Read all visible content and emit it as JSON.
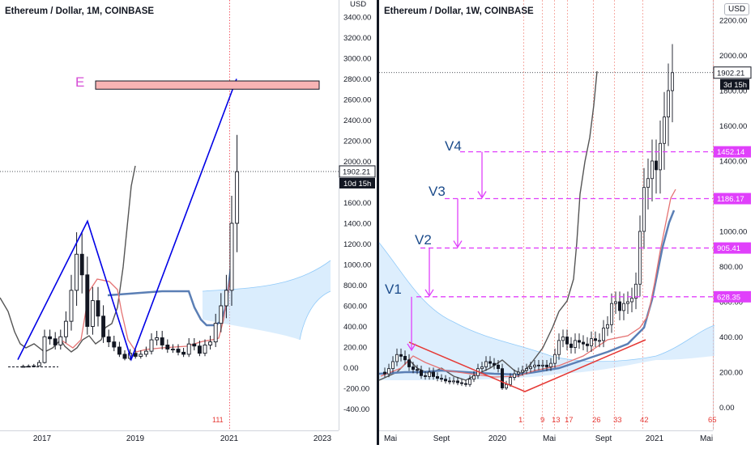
{
  "left_pane": {
    "title": "Ethereum / Dollar, 1M, COINBASE",
    "currency_label": "USD",
    "y_ticks": [
      "3400.00",
      "3200.00",
      "3000.00",
      "2800.00",
      "2600.00",
      "2400.00",
      "2200.00",
      "2000.00",
      "1800.00",
      "1600.00",
      "1400.00",
      "1200.00",
      "1000.00",
      "800.00",
      "600.00",
      "400.00",
      "200.00",
      "0.00",
      "-200.00",
      "-400.00"
    ],
    "x_ticks": [
      "2017",
      "2019",
      "2021",
      "2023"
    ],
    "price_label": "1902.21",
    "countdown_label": "10d 15h",
    "target_label": "E",
    "event_marker": "1"
  },
  "right_pane": {
    "title": "Ethereum / Dollar, 1W, COINBASE",
    "currency_label": "USD",
    "y_ticks": [
      "2200.00",
      "2000.00",
      "1800.00",
      "1600.00",
      "1400.00",
      "1200.00",
      "1000.00",
      "800.00",
      "600.00",
      "400.00",
      "200.00",
      "0.00"
    ],
    "x_ticks": [
      "Mai",
      "Sept",
      "2020",
      "Mai",
      "Sept",
      "2021",
      "Mai"
    ],
    "price_label": "1902.21",
    "countdown_label": "3d 15h",
    "levels": [
      {
        "label": "V1",
        "value": "628.35"
      },
      {
        "label": "V2",
        "value": "905.41"
      },
      {
        "label": "V3",
        "value": "1186.17"
      },
      {
        "label": "V4",
        "value": "1452.14"
      }
    ],
    "event_numbers": [
      "1",
      "9",
      "13",
      "17",
      "26",
      "33",
      "42",
      "65"
    ]
  },
  "chart_data": [
    {
      "type": "line",
      "title": "Ethereum / Dollar, 1M, COINBASE",
      "ylim": [
        -470,
        3560
      ],
      "y_ticks": [
        3400,
        3200,
        3000,
        2800,
        2600,
        2400,
        2200,
        2000,
        1800,
        1600,
        1400,
        1200,
        1000,
        800,
        600,
        400,
        200,
        0,
        -200,
        -400
      ],
      "x_ticks": [
        "2017",
        "2019",
        "2021",
        "2023"
      ],
      "approx_monthly_close_usd": [
        10,
        12,
        14,
        18,
        50,
        300,
        280,
        220,
        300,
        450,
        750,
        1100,
        900,
        400,
        650,
        500,
        300,
        250,
        200,
        130,
        90,
        140,
        110,
        130,
        160,
        270,
        290,
        220,
        180,
        180,
        150,
        130,
        230,
        210,
        140,
        220,
        250,
        430,
        600,
        750,
        1400,
        1900
      ],
      "pattern_points_usd": [
        15,
        1420,
        80,
        2800
      ],
      "target_zone_usd": [
        2700,
        2780
      ],
      "current_price": 1902.21,
      "colors": {
        "pattern": "#0000ff",
        "target_zone": "#f7a9a8",
        "tenkan": "#e91e63",
        "kijun": "#4a6fa5",
        "chikou": "#555555",
        "cloud": "#90caf9"
      }
    },
    {
      "type": "line",
      "title": "Ethereum / Dollar, 1W, COINBASE",
      "ylim": [
        -50,
        2330
      ],
      "y_ticks": [
        2200,
        2000,
        1800,
        1600,
        1400,
        1200,
        1000,
        800,
        600,
        400,
        200,
        0
      ],
      "x_ticks": [
        "Mai",
        "Sept",
        "2020",
        "Mai",
        "Sept",
        "2021",
        "Mai"
      ],
      "horizontal_levels": [
        628.35,
        905.41,
        1186.17,
        1452.14
      ],
      "trend_lines_usd": [
        [
          310,
          100
        ],
        [
          100,
          380
        ]
      ],
      "current_price": 1902.21,
      "colors": {
        "levels": "#e040fb",
        "trend": "#e53935",
        "tenkan": "#e91e63",
        "kijun": "#4a6fa5",
        "chikou": "#555555",
        "cloud": "#90caf9"
      }
    }
  ]
}
